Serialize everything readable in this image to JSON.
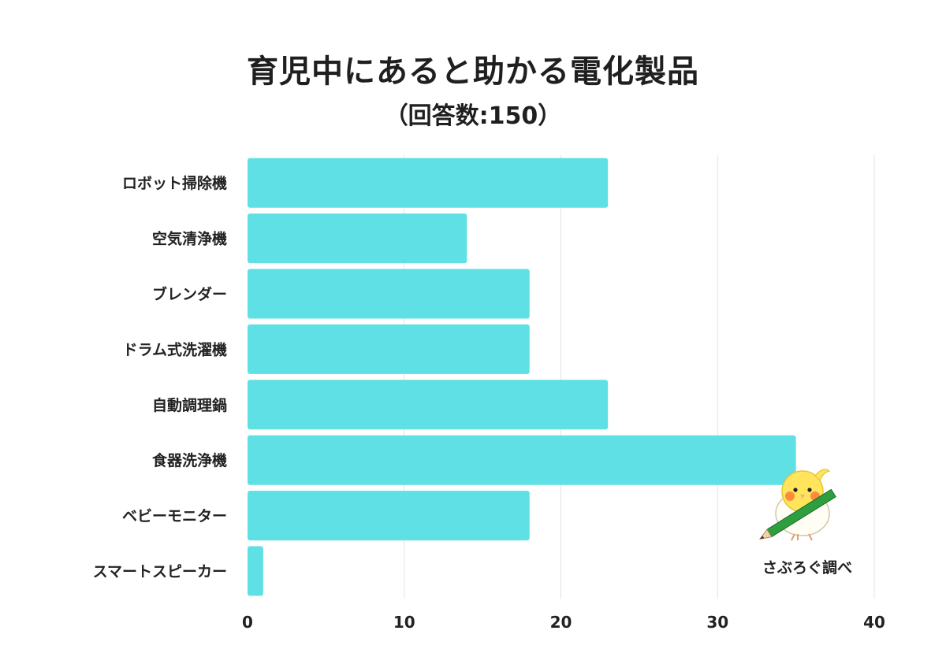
{
  "header": {
    "title": "育児中にあると助かる電化製品",
    "subtitle": "（回答数:150）"
  },
  "chart_data": {
    "type": "bar",
    "orientation": "horizontal",
    "title": "育児中にあると助かる電化製品",
    "subtitle": "（回答数:150）",
    "categories": [
      "ロボット掃除機",
      "空気清浄機",
      "ブレンダー",
      "ドラム式洗濯機",
      "自動調理鍋",
      "食器洗浄機",
      "ベビーモニター",
      "スマートスピーカー"
    ],
    "values": [
      23,
      14,
      18,
      18,
      23,
      35,
      18,
      1
    ],
    "xlim": [
      0,
      40
    ],
    "xticks": [
      "0",
      "10",
      "20",
      "30",
      "40"
    ],
    "grid": "vertical",
    "bar_color": "#5ee0e4",
    "grid_color": "#e3e3e3"
  },
  "footer": {
    "credit": "さぶろぐ調べ",
    "mascot_icon": "bird-with-pencil-icon"
  }
}
